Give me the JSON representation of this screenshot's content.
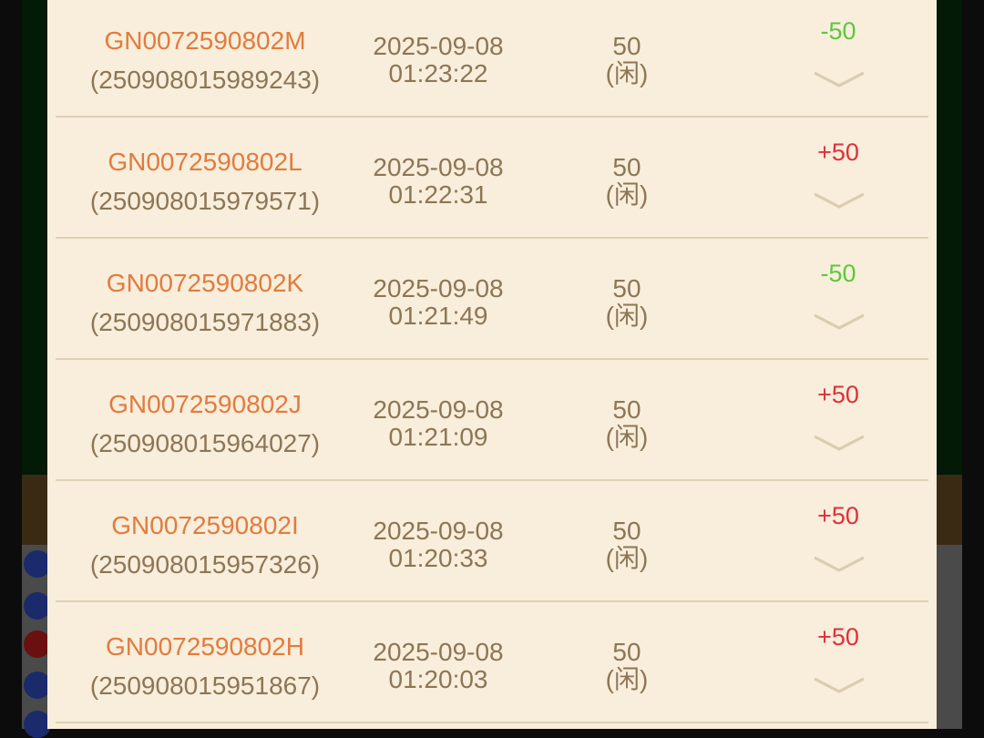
{
  "colors": {
    "win": "#e0303a",
    "loss": "#5cc83a",
    "id": "#e27b3e",
    "text": "#8d7656"
  },
  "records": [
    {
      "id": "GN0072590802M",
      "serial": "(250908015989243)",
      "date": "2025-09-08",
      "time": "01:23:22",
      "amount": "50",
      "side": "(闲)",
      "result": "-50",
      "outcome": "loss"
    },
    {
      "id": "GN0072590802L",
      "serial": "(250908015979571)",
      "date": "2025-09-08",
      "time": "01:22:31",
      "amount": "50",
      "side": "(闲)",
      "result": "+50",
      "outcome": "win"
    },
    {
      "id": "GN0072590802K",
      "serial": "(250908015971883)",
      "date": "2025-09-08",
      "time": "01:21:49",
      "amount": "50",
      "side": "(闲)",
      "result": "-50",
      "outcome": "loss"
    },
    {
      "id": "GN0072590802J",
      "serial": "(250908015964027)",
      "date": "2025-09-08",
      "time": "01:21:09",
      "amount": "50",
      "side": "(闲)",
      "result": "+50",
      "outcome": "win"
    },
    {
      "id": "GN0072590802I",
      "serial": "(250908015957326)",
      "date": "2025-09-08",
      "time": "01:20:33",
      "amount": "50",
      "side": "(闲)",
      "result": "+50",
      "outcome": "win"
    },
    {
      "id": "GN0072590802H",
      "serial": "(250908015951867)",
      "date": "2025-09-08",
      "time": "01:20:03",
      "amount": "50",
      "side": "(闲)",
      "result": "+50",
      "outcome": "win"
    }
  ]
}
